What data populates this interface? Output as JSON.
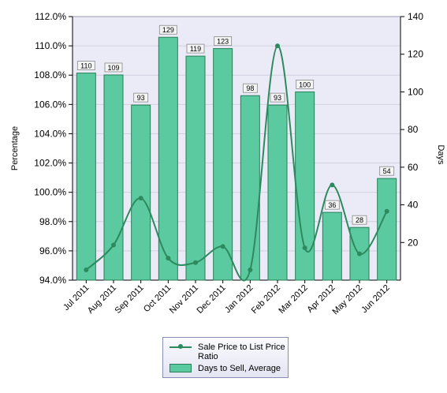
{
  "chart_data": {
    "type": "bar",
    "categories": [
      "Jul 2011",
      "Aug 2011",
      "Sep 2011",
      "Oct 2011",
      "Nov 2011",
      "Dec 2011",
      "Jan 2012",
      "Feb 2012",
      "Mar 2012",
      "Apr 2012",
      "May 2012",
      "Jun 2012"
    ],
    "series": [
      {
        "name": "Days to Sell, Average",
        "type": "bar",
        "axis": "right",
        "values": [
          110,
          109,
          93,
          129,
          119,
          123,
          98,
          93,
          100,
          36,
          28,
          54
        ],
        "color": "#5ccaa0",
        "border_color": "#2a7e58"
      },
      {
        "name": "Sale Price to List Price Ratio",
        "type": "line",
        "axis": "left",
        "values": [
          94.7,
          96.4,
          99.6,
          95.5,
          95.2,
          96.3,
          94.7,
          110.0,
          96.2,
          100.5,
          95.8,
          98.7
        ],
        "color": "#2d8a5e"
      }
    ],
    "left_axis": {
      "label": "Percentage",
      "min": 94,
      "max": 112,
      "step": 2,
      "ticks": [
        "94.0%",
        "96.0%",
        "98.0%",
        "100.0%",
        "102.0%",
        "104.0%",
        "106.0%",
        "108.0%",
        "110.0%",
        "112.0%"
      ]
    },
    "right_axis": {
      "label": "Days",
      "min": 0,
      "max": 140,
      "step": 20,
      "ticks": [
        "20",
        "40",
        "60",
        "80",
        "100",
        "120",
        "140"
      ]
    },
    "grid": true,
    "legend_position": "bottom-center",
    "plot_background": "#ebebf7"
  }
}
